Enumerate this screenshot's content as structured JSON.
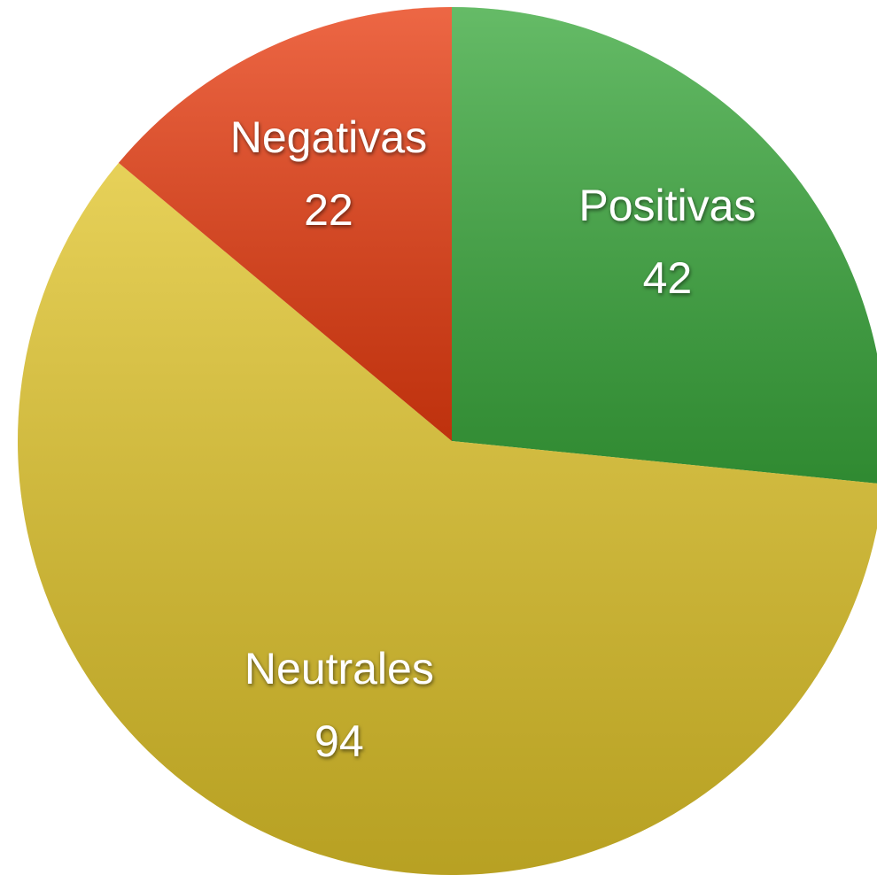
{
  "chart_data": {
    "type": "pie",
    "categories": [
      "Positivas",
      "Neutrales",
      "Negativas"
    ],
    "values": [
      42,
      94,
      22
    ],
    "colors": [
      "#3aa83c",
      "#e0c42a",
      "#e83c10"
    ]
  }
}
